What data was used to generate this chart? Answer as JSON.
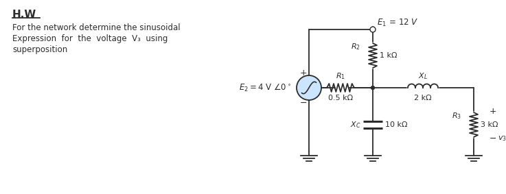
{
  "title": "H.W",
  "text_line1": "For the network determine the sinusoidal",
  "text_line2": "Expression  for  the  voltage  V₃  using",
  "text_line3": "superposition",
  "E1_label": "$E_1\\,=\\,12$ V",
  "E2_label": "$E_2 = 4$ V $\\angle 0^\\circ$",
  "R1_label": "$R_1$",
  "R1_val": "0.5 kΩ",
  "R2_label": "$R_2$",
  "R2_val": "1 kΩ",
  "XL_label": "$X_L$",
  "XL_val": "2 kΩ",
  "XC_label": "$X_C$",
  "XC_val": "10 kΩ",
  "R3_label": "$R_3$",
  "R3_val": "3 kΩ",
  "v3_label": "$v_3$",
  "plus": "+",
  "minus": "−",
  "bg_color": "#ffffff",
  "line_color": "#2b2b2b",
  "text_color": "#2b2b2b",
  "source_fill": "#cce5ff"
}
